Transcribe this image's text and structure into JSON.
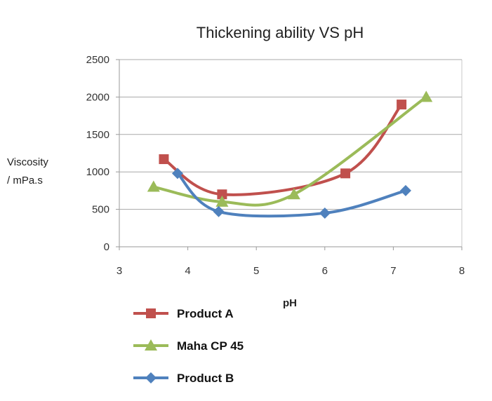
{
  "chart_data": {
    "type": "line",
    "title": "Thickening ability VS pH",
    "xlabel": "pH",
    "ylabel": [
      "Viscosity",
      "/ mPa.s"
    ],
    "xlim": [
      3,
      8
    ],
    "ylim": [
      0,
      2500
    ],
    "xticks": [
      "3",
      "4",
      "5",
      "6",
      "7",
      "8"
    ],
    "yticks": [
      "0",
      "500",
      "1000",
      "1500",
      "2000",
      "2500"
    ],
    "grid": "horizontal",
    "legend_position": "bottom-left",
    "series": [
      {
        "name": "Product A",
        "marker": "square",
        "color": "#C0504D",
        "points": [
          [
            3.65,
            1170
          ],
          [
            4.5,
            700
          ],
          [
            6.3,
            980
          ],
          [
            7.12,
            1900
          ]
        ]
      },
      {
        "name": "Maha CP 45",
        "marker": "triangle",
        "color": "#9BBB59",
        "points": [
          [
            3.5,
            800
          ],
          [
            4.5,
            600
          ],
          [
            5.55,
            700
          ],
          [
            7.48,
            2000
          ]
        ]
      },
      {
        "name": "Product B",
        "marker": "diamond",
        "color": "#4F81BD",
        "points": [
          [
            3.85,
            980
          ],
          [
            4.45,
            470
          ],
          [
            6.0,
            450
          ],
          [
            7.18,
            750
          ]
        ]
      }
    ]
  }
}
